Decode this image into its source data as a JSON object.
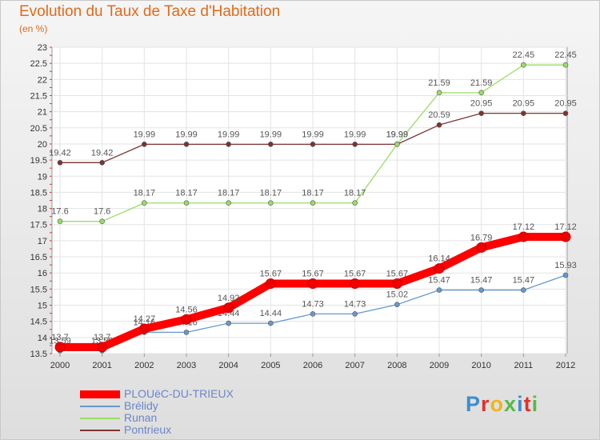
{
  "chart_data": {
    "type": "line",
    "title": "Evolution du Taux de Taxe d'Habitation",
    "subtitle": "(en %)",
    "x": [
      "2000",
      "2001",
      "2002",
      "2003",
      "2004",
      "2005",
      "2006",
      "2007",
      "2008",
      "2009",
      "2010",
      "2011",
      "2012"
    ],
    "ylim": [
      13.5,
      23
    ],
    "yticks": [
      13.5,
      14,
      14.5,
      15,
      15.5,
      16,
      16.5,
      17,
      17.5,
      18,
      18.5,
      19,
      19.5,
      20,
      20.5,
      21,
      21.5,
      22,
      22.5,
      23
    ],
    "grid": true,
    "legend_position": "bottom-left",
    "series": [
      {
        "name": "PLOUëC-DU-TRIEUX",
        "color": "#ff0000",
        "values": [
          13.7,
          13.7,
          14.27,
          14.56,
          14.92,
          15.67,
          15.67,
          15.67,
          15.67,
          16.14,
          16.79,
          17.12,
          17.12
        ]
      },
      {
        "name": "Brélidy",
        "color": "#6699cc",
        "values": [
          13.59,
          13.59,
          14.16,
          14.16,
          14.44,
          14.44,
          14.73,
          14.73,
          15.02,
          15.47,
          15.47,
          15.47,
          15.93
        ]
      },
      {
        "name": "Runan",
        "color": "#99dd66",
        "values": [
          17.6,
          17.6,
          18.17,
          18.17,
          18.17,
          18.17,
          18.17,
          18.17,
          19.99,
          21.59,
          21.59,
          22.45,
          22.45
        ]
      },
      {
        "name": "Pontrieux",
        "color": "#7a3434",
        "values": [
          19.42,
          19.42,
          19.99,
          19.99,
          19.99,
          19.99,
          19.99,
          19.99,
          19.99,
          20.59,
          20.95,
          20.95,
          20.95
        ]
      }
    ]
  },
  "brand": {
    "text": "Proxiti",
    "letter_colors": [
      "#3a8fd0",
      "#e2302c",
      "#f0b41d",
      "#58b947",
      "#3a8fd0",
      "#e2302c",
      "#58b947"
    ]
  }
}
